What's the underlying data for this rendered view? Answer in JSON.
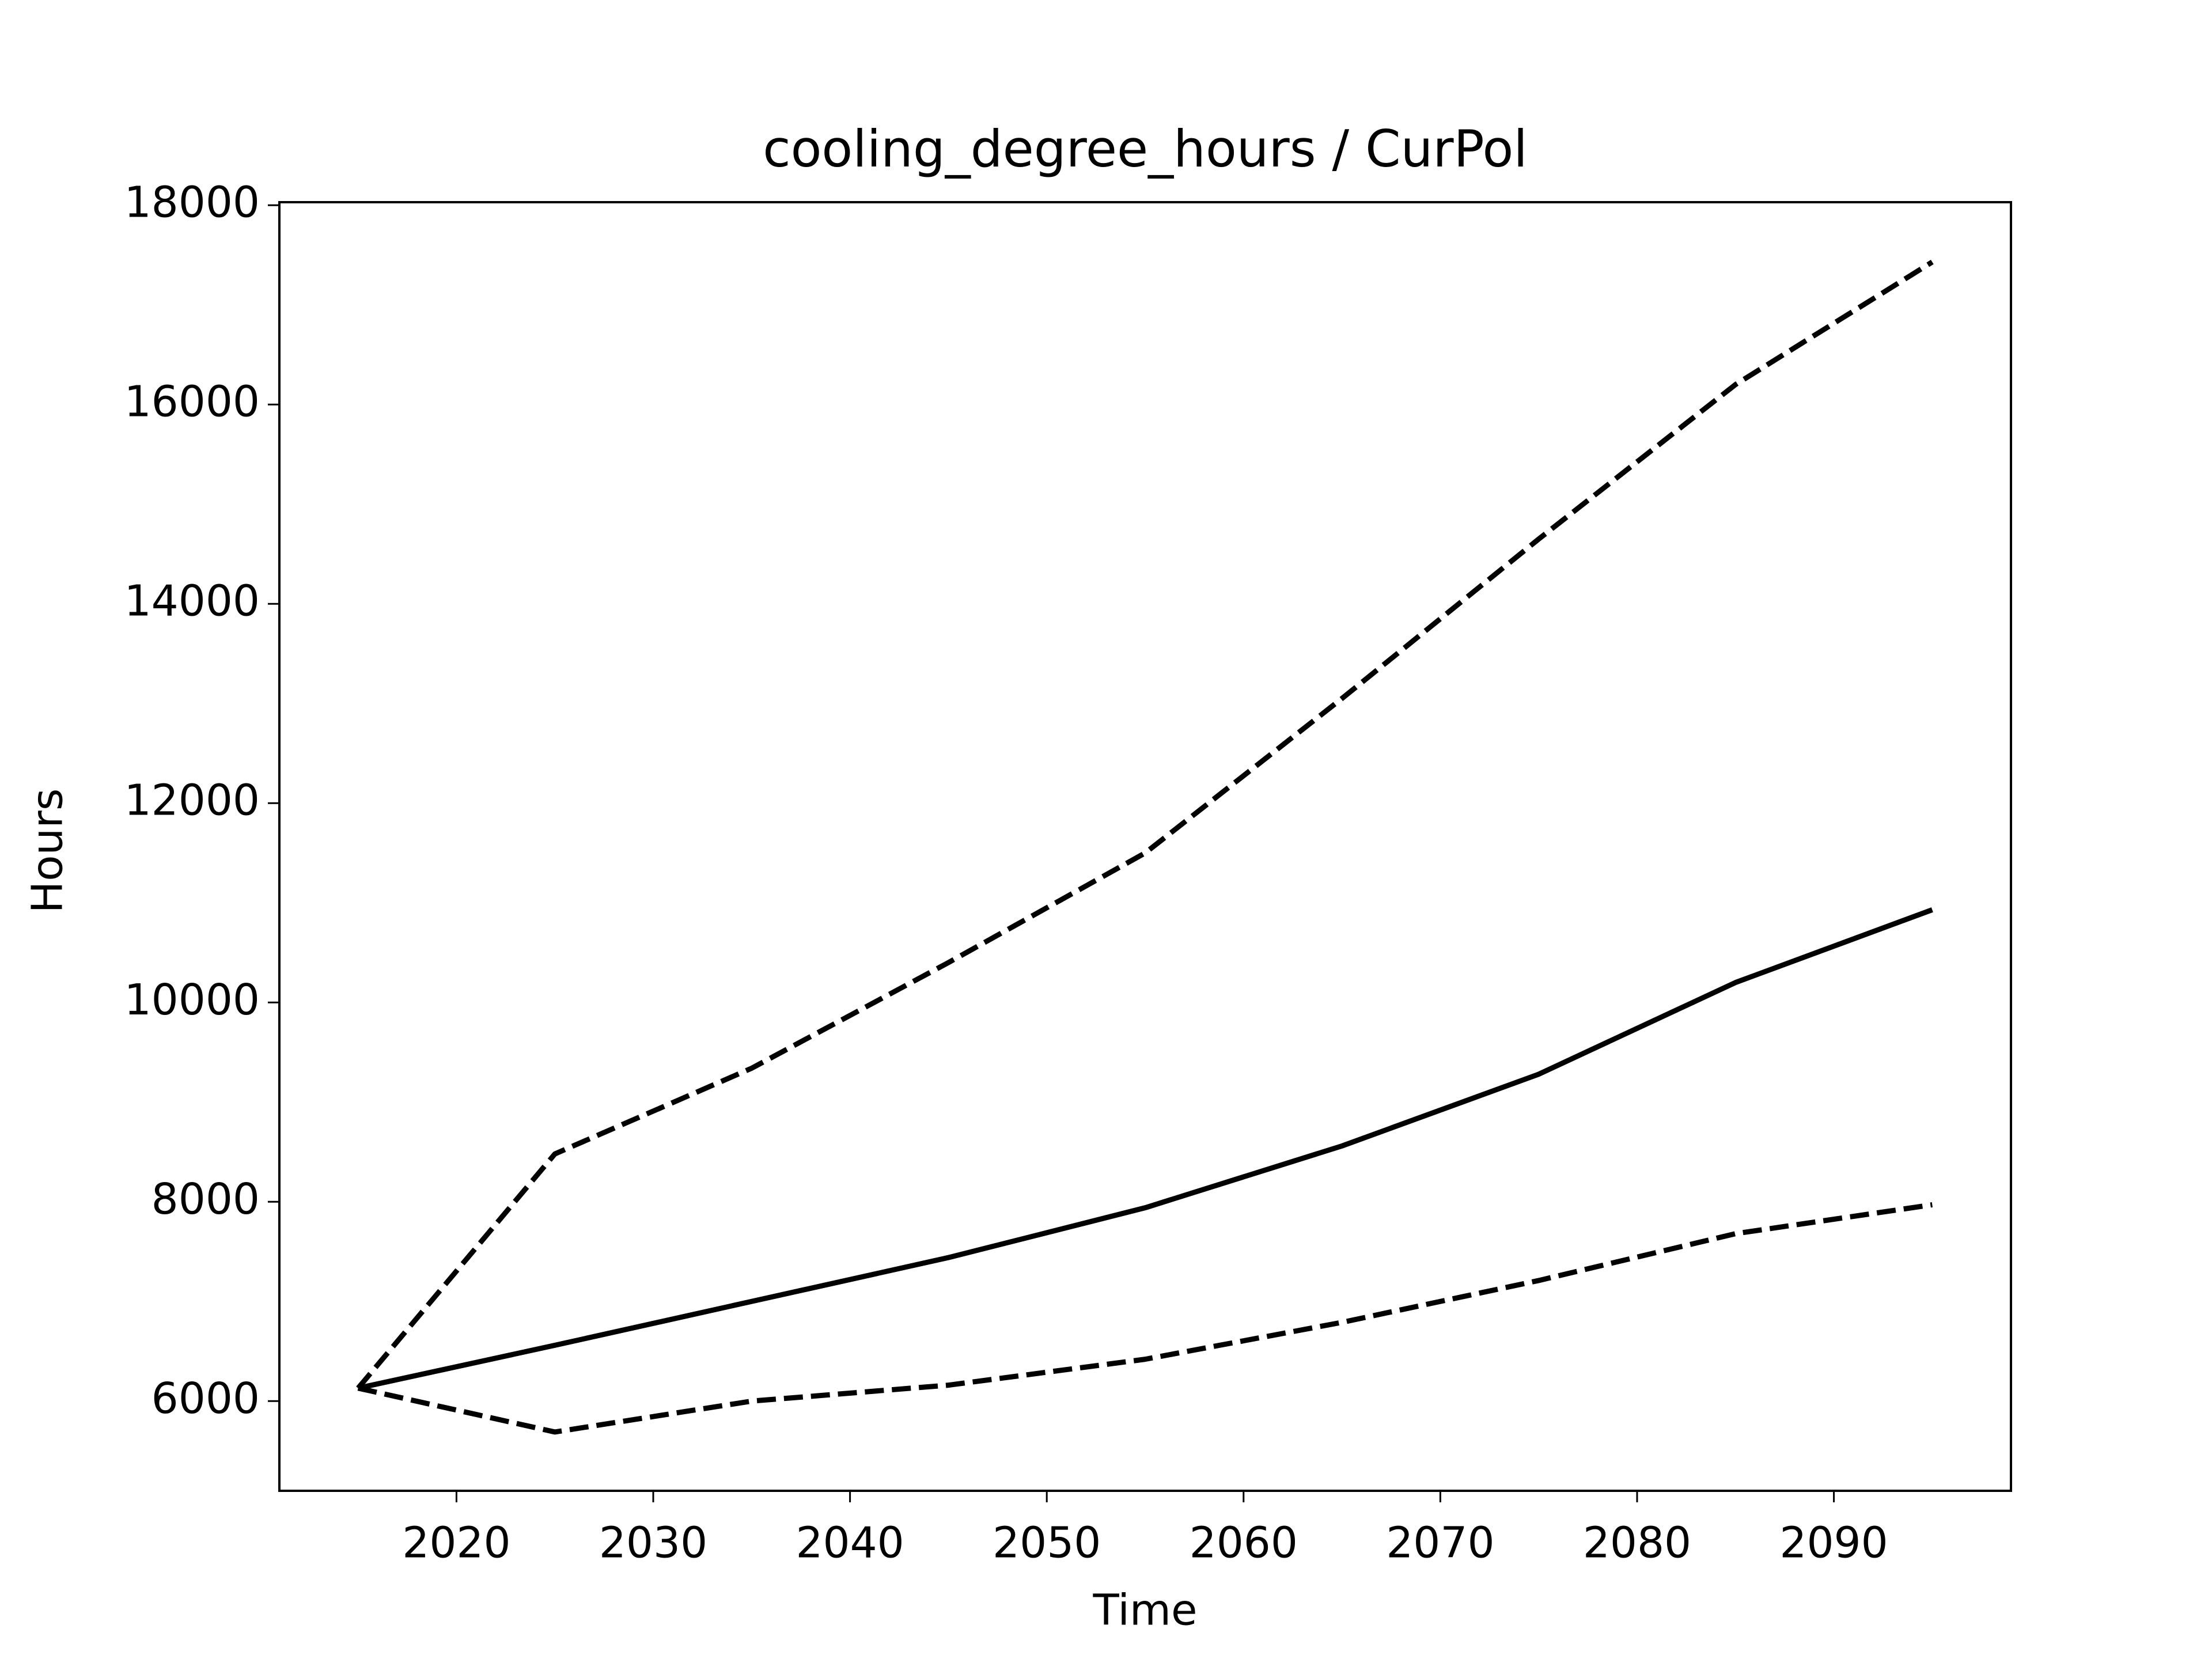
{
  "chart_data": {
    "type": "line",
    "title": "cooling_degree_hours / CurPol",
    "xlabel": "Time",
    "ylabel": "Hours",
    "x": [
      2015,
      2025,
      2035,
      2045,
      2055,
      2065,
      2075,
      2085,
      2095
    ],
    "series": [
      {
        "color": "#000000",
        "linestyle": "solid",
        "values": [
          6130,
          6560,
          7000,
          7440,
          7940,
          8560,
          9280,
          10200,
          10930
        ]
      },
      {
        "color": "#000000",
        "linestyle": "dashed",
        "values": [
          6130,
          8480,
          9340,
          10400,
          11500,
          13050,
          14650,
          16200,
          17430
        ]
      },
      {
        "color": "#000000",
        "linestyle": "dashed",
        "values": [
          6130,
          5690,
          6000,
          6160,
          6420,
          6790,
          7210,
          7680,
          7970
        ]
      }
    ],
    "xlim": [
      2011,
      2099
    ],
    "xticks": [
      2020,
      2030,
      2040,
      2050,
      2060,
      2070,
      2080,
      2090
    ],
    "ylim": [
      5100,
      18030
    ],
    "yticks": [
      6000,
      8000,
      10000,
      12000,
      14000,
      16000,
      18000
    ],
    "grid": false
  }
}
